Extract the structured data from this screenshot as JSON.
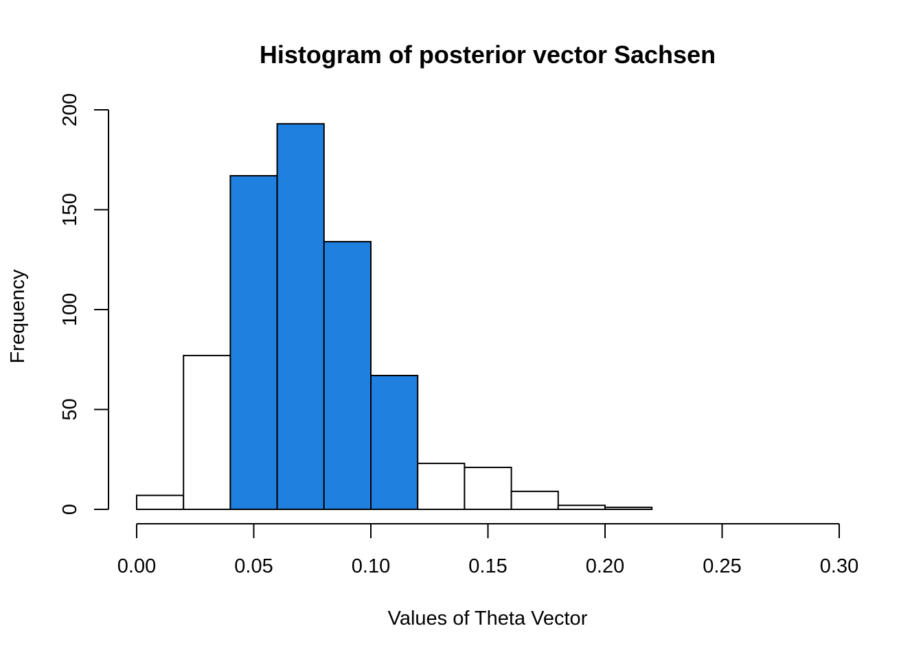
{
  "chart_data": {
    "type": "bar",
    "title": "Histogram of posterior vector Sachsen",
    "xlabel": "Values of Theta Vector",
    "ylabel": "Frequency",
    "bins": [
      {
        "x0": 0.0,
        "x1": 0.02,
        "count": 7,
        "highlighted": false
      },
      {
        "x0": 0.02,
        "x1": 0.04,
        "count": 77,
        "highlighted": false
      },
      {
        "x0": 0.04,
        "x1": 0.06,
        "count": 167,
        "highlighted": true
      },
      {
        "x0": 0.06,
        "x1": 0.08,
        "count": 193,
        "highlighted": true
      },
      {
        "x0": 0.08,
        "x1": 0.1,
        "count": 134,
        "highlighted": true
      },
      {
        "x0": 0.1,
        "x1": 0.12,
        "count": 67,
        "highlighted": true
      },
      {
        "x0": 0.12,
        "x1": 0.14,
        "count": 23,
        "highlighted": false
      },
      {
        "x0": 0.14,
        "x1": 0.16,
        "count": 21,
        "highlighted": false
      },
      {
        "x0": 0.16,
        "x1": 0.18,
        "count": 9,
        "highlighted": false
      },
      {
        "x0": 0.18,
        "x1": 0.2,
        "count": 2,
        "highlighted": false
      },
      {
        "x0": 0.2,
        "x1": 0.22,
        "count": 1,
        "highlighted": false
      }
    ],
    "xlim": [
      0,
      0.3
    ],
    "ylim": [
      0,
      200
    ],
    "x_ticks": [
      0.0,
      0.05,
      0.1,
      0.15,
      0.2,
      0.25,
      0.3
    ],
    "x_tick_labels": [
      "0.00",
      "0.05",
      "0.10",
      "0.15",
      "0.20",
      "0.25",
      "0.30"
    ],
    "y_ticks": [
      0,
      50,
      100,
      150,
      200
    ],
    "y_tick_labels": [
      "0",
      "50",
      "100",
      "150",
      "200"
    ],
    "grid": false,
    "colors": {
      "highlight": "#1f80e0",
      "default": "#ffffff",
      "outline": "#000000"
    }
  }
}
